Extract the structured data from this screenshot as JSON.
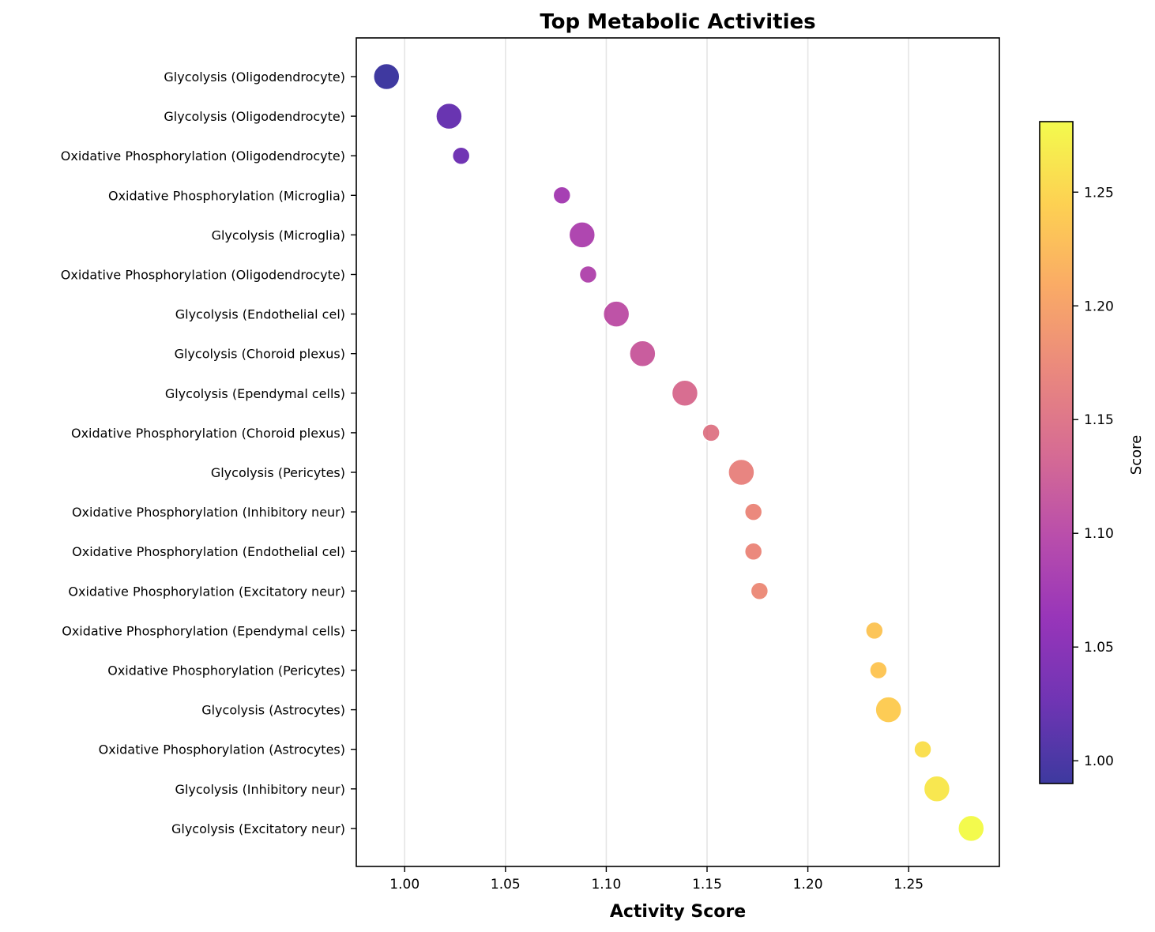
{
  "chart_data": {
    "type": "scatter",
    "title": "Top Metabolic Activities",
    "xlabel": "Activity Score",
    "ylabel": "",
    "xlim": [
      0.976,
      1.295
    ],
    "xticks": [
      "1.00",
      "1.05",
      "1.10",
      "1.15",
      "1.20",
      "1.25"
    ],
    "grid": "x-only",
    "colormap": "plasma",
    "colorbar": {
      "label": "Score",
      "range": [
        0.99,
        1.281
      ],
      "ticks": [
        "1.00",
        "1.05",
        "1.10",
        "1.15",
        "1.20",
        "1.25"
      ]
    },
    "size_note_levels": {
      "large": "Glycolysis",
      "small": "Oxidative Phosphorylation"
    },
    "points": [
      {
        "label": "Glycolysis (Oligodendrocyte)",
        "x": 0.991,
        "size": "large"
      },
      {
        "label": "Glycolysis (Oligodendrocyte)",
        "x": 1.022,
        "size": "large"
      },
      {
        "label": "Oxidative Phosphorylation (Oligodendrocyte)",
        "x": 1.028,
        "size": "small"
      },
      {
        "label": "Oxidative Phosphorylation (Microglia)",
        "x": 1.078,
        "size": "small"
      },
      {
        "label": "Glycolysis (Microglia)",
        "x": 1.088,
        "size": "large"
      },
      {
        "label": "Oxidative Phosphorylation (Oligodendrocyte)",
        "x": 1.091,
        "size": "small"
      },
      {
        "label": "Glycolysis (Endothelial cel)",
        "x": 1.105,
        "size": "large"
      },
      {
        "label": "Glycolysis (Choroid plexus)",
        "x": 1.118,
        "size": "large"
      },
      {
        "label": "Glycolysis (Ependymal cells)",
        "x": 1.139,
        "size": "large"
      },
      {
        "label": "Oxidative Phosphorylation (Choroid plexus)",
        "x": 1.152,
        "size": "small"
      },
      {
        "label": "Glycolysis (Pericytes)",
        "x": 1.167,
        "size": "large"
      },
      {
        "label": "Oxidative Phosphorylation (Inhibitory neur)",
        "x": 1.173,
        "size": "small"
      },
      {
        "label": "Oxidative Phosphorylation (Endothelial cel)",
        "x": 1.173,
        "size": "small"
      },
      {
        "label": "Oxidative Phosphorylation (Excitatory neur)",
        "x": 1.176,
        "size": "small"
      },
      {
        "label": "Oxidative Phosphorylation (Ependymal cells)",
        "x": 1.233,
        "size": "small"
      },
      {
        "label": "Oxidative Phosphorylation (Pericytes)",
        "x": 1.235,
        "size": "small"
      },
      {
        "label": "Glycolysis (Astrocytes)",
        "x": 1.24,
        "size": "large"
      },
      {
        "label": "Oxidative Phosphorylation (Astrocytes)",
        "x": 1.257,
        "size": "small"
      },
      {
        "label": "Glycolysis (Inhibitory neur)",
        "x": 1.264,
        "size": "large"
      },
      {
        "label": "Glycolysis (Excitatory neur)",
        "x": 1.281,
        "size": "large"
      }
    ]
  }
}
